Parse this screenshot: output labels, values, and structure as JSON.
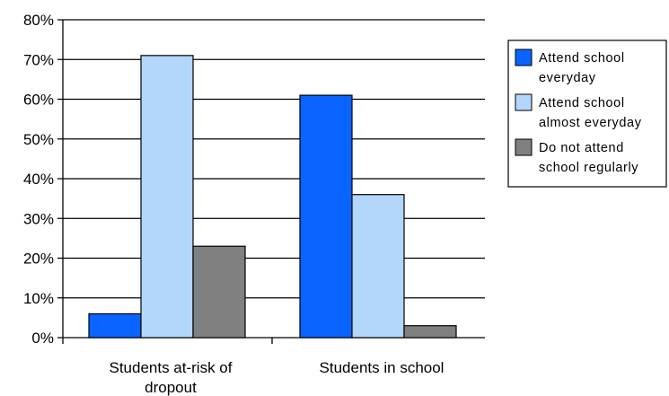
{
  "chart_data": {
    "type": "bar",
    "categories": [
      [
        "Students at-risk of",
        "dropout"
      ],
      [
        "Students in school"
      ]
    ],
    "series": [
      {
        "name": [
          "Attend school",
          "everyday"
        ],
        "values": [
          6,
          61
        ],
        "color": "#0a64ff"
      },
      {
        "name": [
          "Attend school",
          "almost everyday"
        ],
        "values": [
          71,
          36
        ],
        "color": "#b3d6fb"
      },
      {
        "name": [
          "Do not attend",
          "school regularly"
        ],
        "values": [
          23,
          3
        ],
        "color": "#808080"
      }
    ],
    "ylim": [
      0,
      80
    ],
    "yticks": [
      "0%",
      "10%",
      "20%",
      "30%",
      "40%",
      "50%",
      "60%",
      "70%",
      "80%"
    ],
    "grid": true,
    "legend": "right"
  }
}
